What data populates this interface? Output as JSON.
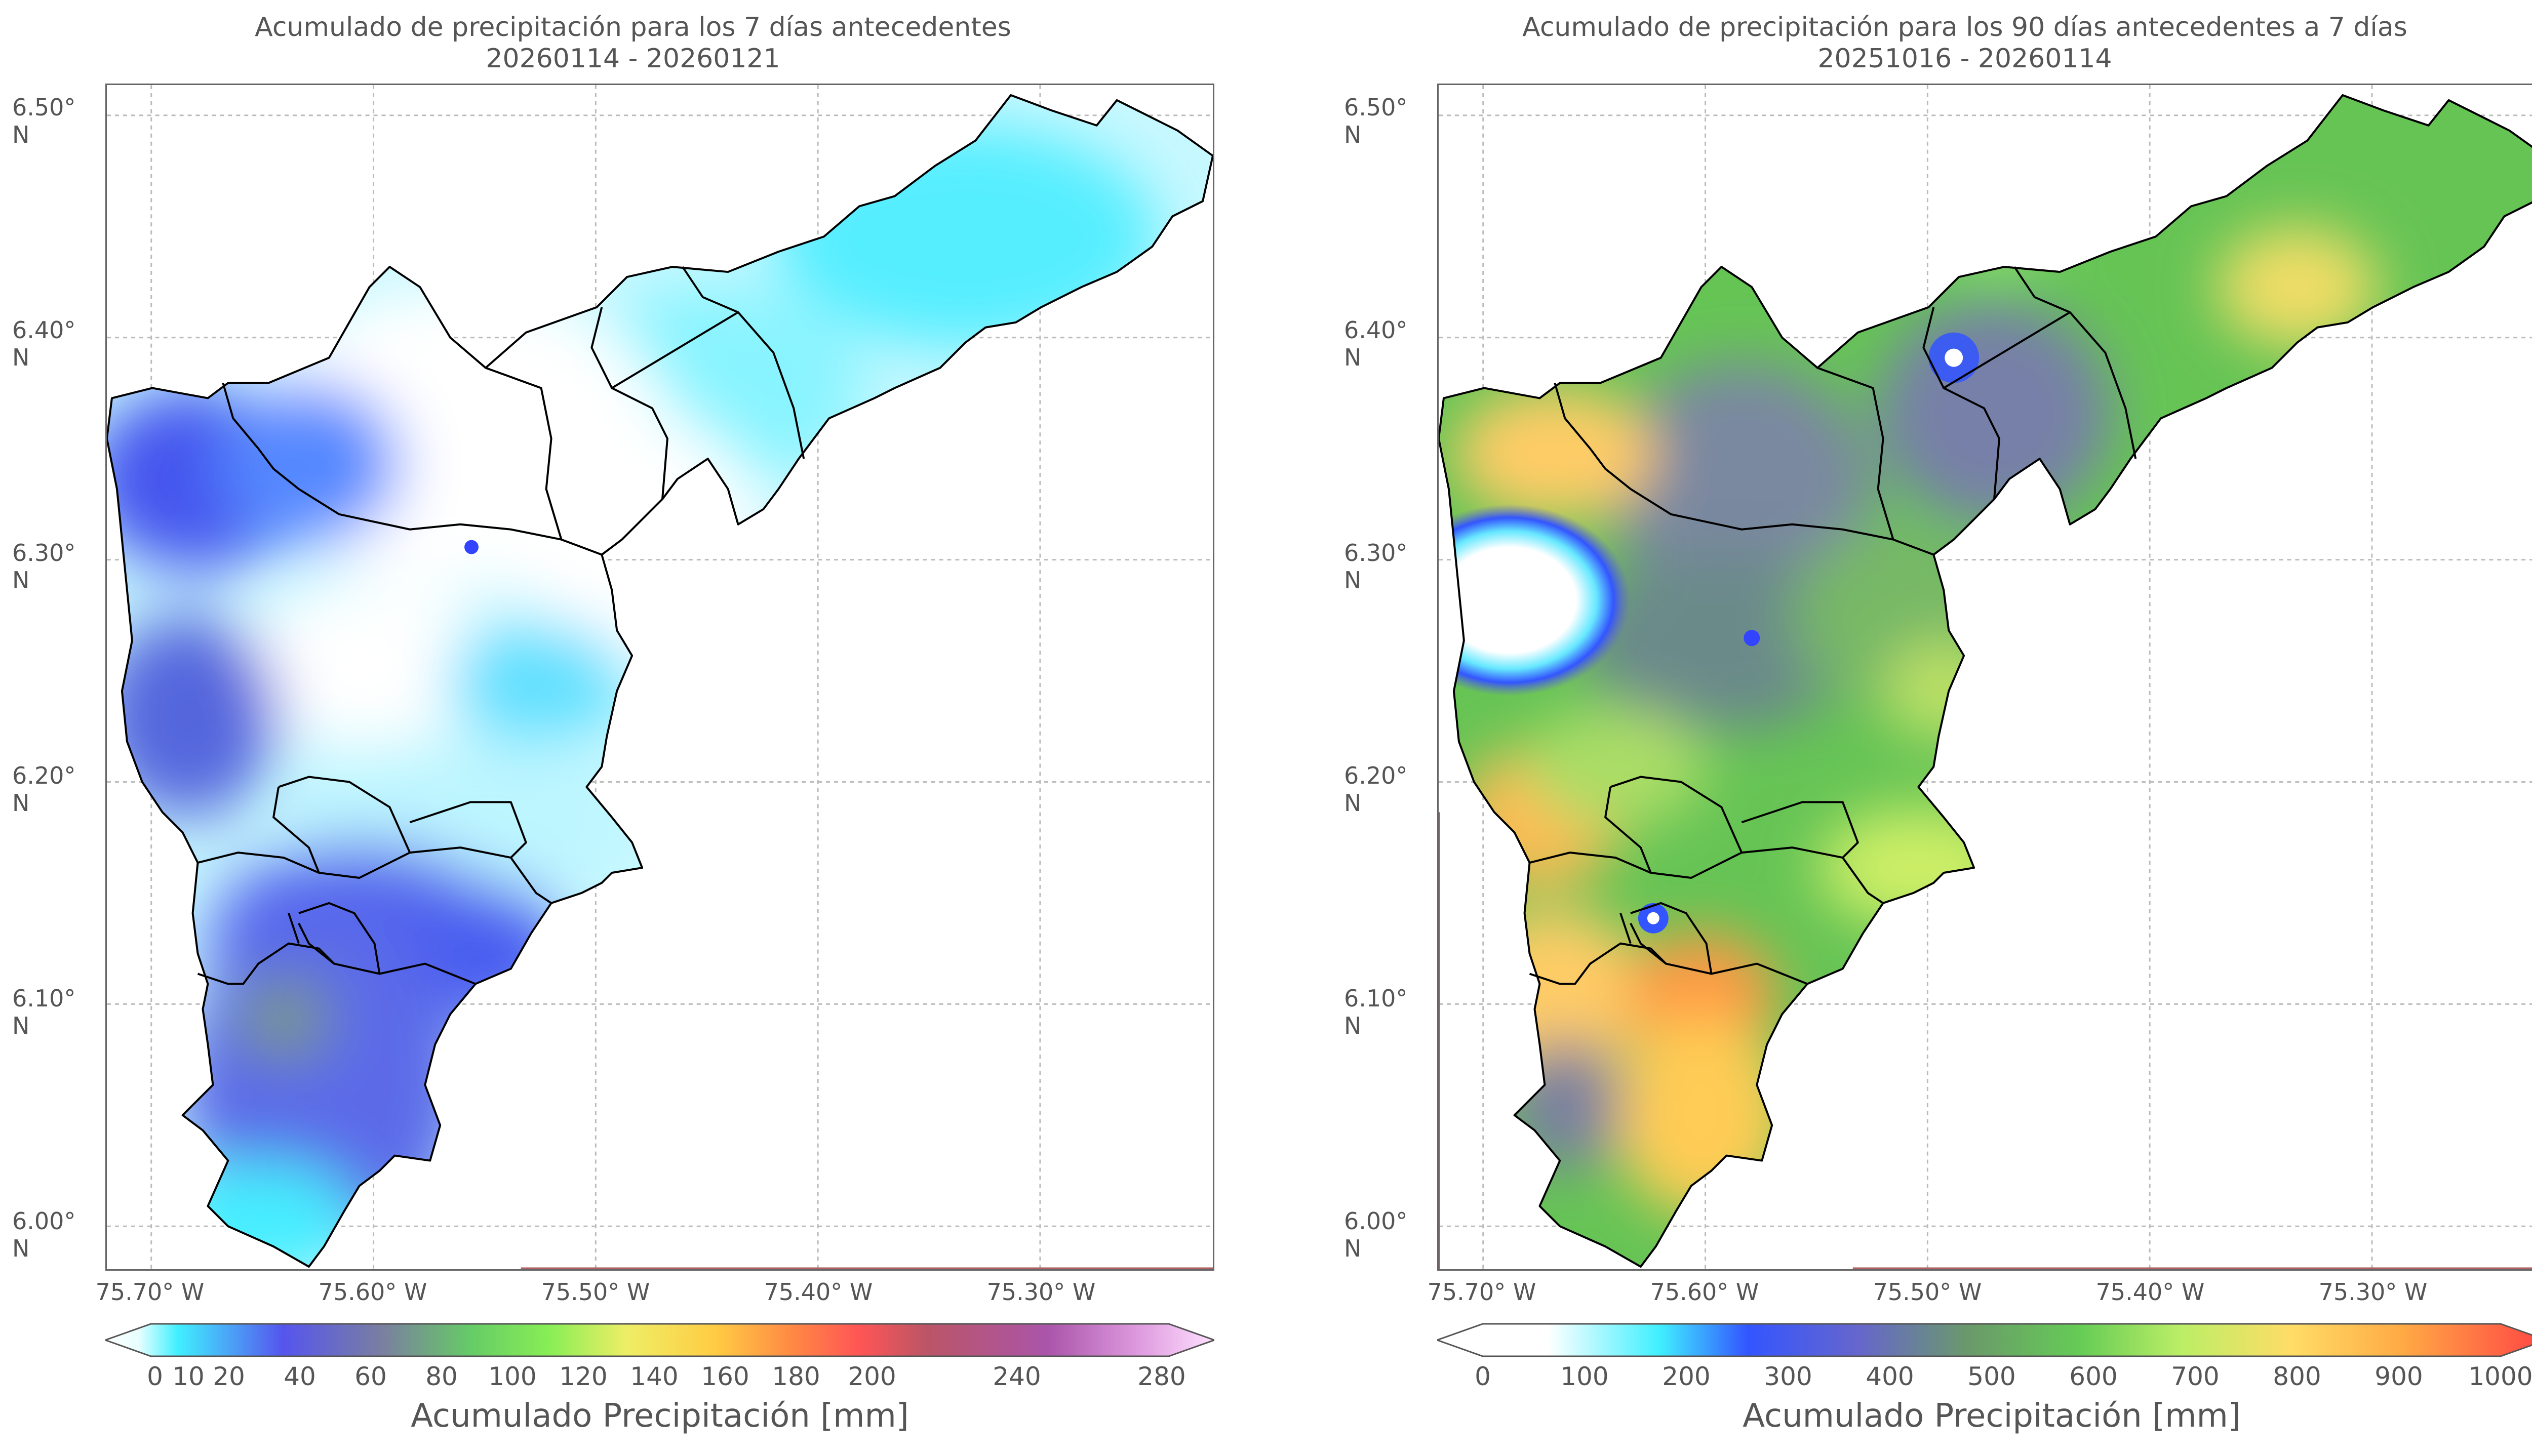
{
  "panels": [
    {
      "title_line1": "Acumulado de precipitación para los 7 días antecedentes",
      "title_line2": "20260114 - 20260121",
      "lat_labels": [
        "6.50° N",
        "6.40° N",
        "6.30° N",
        "6.20° N",
        "6.10° N",
        "6.00° N"
      ],
      "lon_labels": [
        "75.70° W",
        "75.60° W",
        "75.50° W",
        "75.40° W",
        "75.30° W"
      ],
      "colorbar_ticks": [
        "0",
        "10",
        "20",
        "40",
        "60",
        "80",
        "100",
        "120",
        "140",
        "160",
        "180",
        "200",
        "240",
        "280"
      ],
      "colorbar_label": "Acumulado Precipitación [mm]",
      "colorbar_stops": [
        "#ffffff",
        "#e8ffff",
        "#40f0ff",
        "#5555ee",
        "#7a7fa0",
        "#66cc66",
        "#88ee55",
        "#eeee66",
        "#ffcc44",
        "#ff8844",
        "#ff5555",
        "#bb5566",
        "#aa55aa",
        "#dd99dd",
        "#ffe0ff"
      ]
    },
    {
      "title_line1": "Acumulado de precipitación para los 90 días antecedentes a 7 días",
      "title_line2": "20251016 - 20260114",
      "lat_labels": [
        "6.50° N",
        "6.40° N",
        "6.30° N",
        "6.20° N",
        "6.10° N",
        "6.00° N"
      ],
      "lon_labels": [
        "75.70° W",
        "75.60° W",
        "75.50° W",
        "75.40° W",
        "75.30° W"
      ],
      "colorbar_ticks": [
        "0",
        "100",
        "200",
        "300",
        "400",
        "500",
        "600",
        "700",
        "800",
        "900",
        "1000"
      ],
      "colorbar_label": "Acumulado Precipitación [mm]",
      "colorbar_stops": [
        "#ffffff",
        "#ffffff",
        "#40f0ff",
        "#3355ff",
        "#6666cc",
        "#6a9a6a",
        "#66cc55",
        "#bbee66",
        "#ffdd66",
        "#ffaa44",
        "#ff4444"
      ]
    }
  ]
}
